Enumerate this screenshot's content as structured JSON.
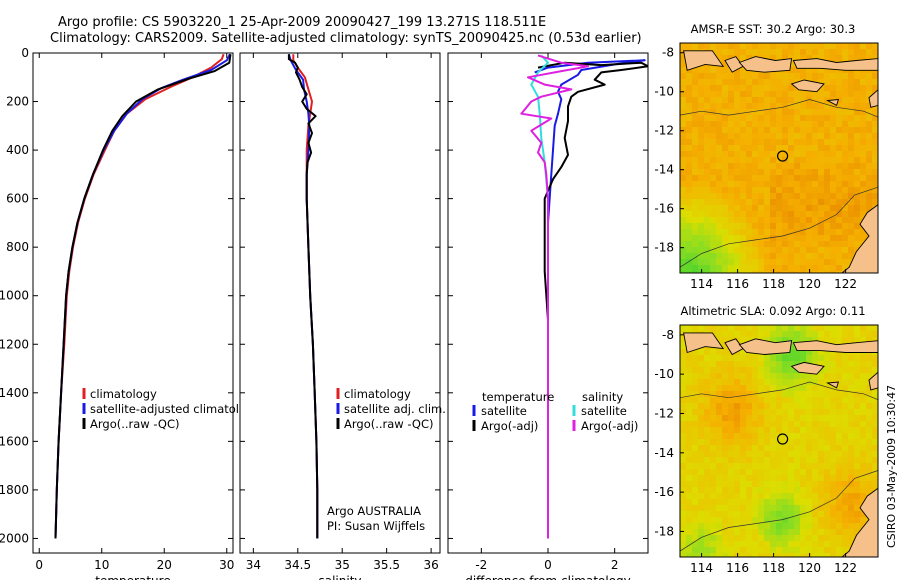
{
  "header": {
    "line1": "Argo profile: CS 5903220_1 25-Apr-2009 20090427_199 13.271S 118.511E",
    "line2": "Climatology: CARS2009. Satellite-adjusted climatology: synTS_20090425.nc (0.53d earlier)"
  },
  "footer": {
    "stamp": "CSIRO 03-May-2009 10:30:47"
  },
  "colors": {
    "clim": "#e02020",
    "sat": "#1a1ae6",
    "argo": "#000000",
    "sat_sal": "#33dddd",
    "argo_sal": "#e020e0",
    "land": "#f5c08a",
    "ocean_base": "#f0a800",
    "cool": "#2ed02e"
  },
  "chart_data": [
    {
      "id": "temp",
      "type": "line",
      "xlabel": "temperature",
      "xlim": [
        -1,
        31
      ],
      "ylim": [
        0,
        2060
      ],
      "xticks": [
        0,
        10,
        20,
        30
      ],
      "yticks": [
        0,
        200,
        400,
        600,
        800,
        1000,
        1200,
        1400,
        1600,
        1800,
        2000
      ],
      "legend": [
        "climatology",
        "satellite-adjusted climatology",
        "Argo(..raw -QC)"
      ],
      "series": [
        {
          "name": "climatology",
          "color": "clim",
          "points": [
            [
              29.5,
              5
            ],
            [
              29.2,
              25
            ],
            [
              27.5,
              60
            ],
            [
              24.5,
              100
            ],
            [
              21,
              140
            ],
            [
              17,
              190
            ],
            [
              14,
              250
            ],
            [
              12,
              320
            ],
            [
              10.5,
              400
            ],
            [
              8.7,
              500
            ],
            [
              7.3,
              600
            ],
            [
              6.2,
              700
            ],
            [
              5.4,
              800
            ],
            [
              4.8,
              900
            ],
            [
              4.4,
              1000
            ],
            [
              4,
              1200
            ],
            [
              3.5,
              1400
            ],
            [
              3.1,
              1600
            ],
            [
              2.8,
              1800
            ],
            [
              2.6,
              2000
            ]
          ]
        },
        {
          "name": "satellite",
          "color": "sat",
          "points": [
            [
              30.5,
              5
            ],
            [
              30,
              30
            ],
            [
              27.5,
              70
            ],
            [
              23,
              110
            ],
            [
              19.5,
              145
            ],
            [
              16.5,
              190
            ],
            [
              14,
              250
            ],
            [
              12,
              320
            ],
            [
              10.3,
              400
            ],
            [
              8.6,
              500
            ],
            [
              7.2,
              600
            ],
            [
              6.1,
              700
            ],
            [
              5.3,
              800
            ],
            [
              4.7,
              900
            ],
            [
              4.3,
              1000
            ],
            [
              3.9,
              1200
            ],
            [
              3.5,
              1400
            ],
            [
              3.1,
              1600
            ],
            [
              2.8,
              1800
            ],
            [
              2.6,
              2000
            ]
          ]
        },
        {
          "name": "argo",
          "color": "argo",
          "points": [
            [
              30.6,
              5
            ],
            [
              30.4,
              40
            ],
            [
              28,
              75
            ],
            [
              24,
              105
            ],
            [
              19,
              150
            ],
            [
              15.5,
              200
            ],
            [
              13.3,
              260
            ],
            [
              11.7,
              320
            ],
            [
              10.2,
              400
            ],
            [
              8.6,
              500
            ],
            [
              7.2,
              600
            ],
            [
              6.1,
              700
            ],
            [
              5.3,
              800
            ],
            [
              4.7,
              900
            ],
            [
              4.3,
              1000
            ],
            [
              3.9,
              1200
            ],
            [
              3.5,
              1400
            ],
            [
              3.1,
              1600
            ],
            [
              2.8,
              1800
            ],
            [
              2.6,
              2000
            ]
          ]
        }
      ]
    },
    {
      "id": "sal",
      "type": "line",
      "xlabel": "salinity",
      "xlim": [
        33.85,
        36.1
      ],
      "ylim": [
        0,
        2060
      ],
      "xticks": [
        34,
        34.5,
        35,
        35.5,
        36
      ],
      "xticklabels": [
        "34",
        "34.5",
        "35",
        "35.5",
        "36"
      ],
      "legend": [
        "climatology",
        "satellite adj. clim.",
        "Argo(..raw -QC)"
      ],
      "note1": "Argo AUSTRALIA",
      "note2": "PI: Susan Wijffels",
      "series": [
        {
          "name": "climatology",
          "color": "clim",
          "points": [
            [
              34.45,
              5
            ],
            [
              34.45,
              30
            ],
            [
              34.5,
              60
            ],
            [
              34.58,
              100
            ],
            [
              34.62,
              150
            ],
            [
              34.66,
              200
            ],
            [
              34.64,
              250
            ],
            [
              34.62,
              300
            ],
            [
              34.6,
              400
            ],
            [
              34.6,
              500
            ],
            [
              34.6,
              600
            ],
            [
              34.62,
              800
            ],
            [
              34.64,
              1000
            ],
            [
              34.67,
              1200
            ],
            [
              34.69,
              1400
            ],
            [
              34.71,
              1600
            ],
            [
              34.72,
              1800
            ],
            [
              34.72,
              2000
            ]
          ]
        },
        {
          "name": "satellite",
          "color": "sat",
          "points": [
            [
              34.4,
              5
            ],
            [
              34.42,
              30
            ],
            [
              34.48,
              70
            ],
            [
              34.56,
              110
            ],
            [
              34.57,
              150
            ],
            [
              34.6,
              200
            ],
            [
              34.62,
              250
            ],
            [
              34.63,
              300
            ],
            [
              34.62,
              400
            ],
            [
              34.6,
              500
            ],
            [
              34.6,
              600
            ],
            [
              34.62,
              800
            ],
            [
              34.64,
              1000
            ],
            [
              34.67,
              1200
            ],
            [
              34.69,
              1400
            ],
            [
              34.71,
              1600
            ],
            [
              34.72,
              1800
            ],
            [
              34.72,
              2000
            ]
          ]
        },
        {
          "name": "argo",
          "color": "argo",
          "points": [
            [
              34.4,
              5
            ],
            [
              34.4,
              25
            ],
            [
              34.47,
              40
            ],
            [
              34.5,
              60
            ],
            [
              34.48,
              80
            ],
            [
              34.52,
              110
            ],
            [
              34.55,
              140
            ],
            [
              34.6,
              170
            ],
            [
              34.55,
              200
            ],
            [
              34.6,
              230
            ],
            [
              34.7,
              260
            ],
            [
              34.62,
              290
            ],
            [
              34.66,
              330
            ],
            [
              34.62,
              370
            ],
            [
              34.65,
              410
            ],
            [
              34.61,
              450
            ],
            [
              34.6,
              500
            ],
            [
              34.6,
              600
            ],
            [
              34.62,
              800
            ],
            [
              34.64,
              1000
            ],
            [
              34.67,
              1200
            ],
            [
              34.69,
              1400
            ],
            [
              34.71,
              1600
            ],
            [
              34.72,
              1800
            ],
            [
              34.72,
              2000
            ]
          ]
        }
      ]
    },
    {
      "id": "diff",
      "type": "line",
      "xlabel": "difference from climatology",
      "xlim": [
        -3,
        3
      ],
      "ylim": [
        0,
        2060
      ],
      "xticks": [
        -2,
        0,
        2
      ],
      "legend_temp": {
        "title": "temperature",
        "items": [
          "satellite",
          "Argo(-adj)"
        ]
      },
      "legend_sal": {
        "title": "salinity",
        "items": [
          "satellite",
          "Argo(-adj)"
        ]
      },
      "series": [
        {
          "name": "T satellite",
          "color": "sat",
          "points": [
            [
              -0.4,
              80
            ],
            [
              0,
              60
            ],
            [
              1.2,
              40
            ],
            [
              2.9,
              30
            ],
            [
              2.1,
              45
            ],
            [
              1,
              70
            ],
            [
              0.9,
              90
            ],
            [
              0.4,
              130
            ],
            [
              0.3,
              160
            ],
            [
              0.4,
              190
            ],
            [
              0.3,
              250
            ],
            [
              0.2,
              300
            ],
            [
              0.15,
              400
            ],
            [
              0.1,
              500
            ],
            [
              0,
              700
            ],
            [
              0,
              900
            ],
            [
              0,
              1200
            ],
            [
              0,
              1600
            ],
            [
              0,
              2000
            ]
          ]
        },
        {
          "name": "T argo",
          "color": "argo",
          "points": [
            [
              -0.3,
              60
            ],
            [
              0.5,
              40
            ],
            [
              1.6,
              50
            ],
            [
              2.8,
              40
            ],
            [
              3,
              55
            ],
            [
              2.2,
              70
            ],
            [
              1.6,
              80
            ],
            [
              1.4,
              110
            ],
            [
              1.7,
              130
            ],
            [
              0.9,
              160
            ],
            [
              0.7,
              180
            ],
            [
              0.6,
              220
            ],
            [
              0.6,
              280
            ],
            [
              0.5,
              350
            ],
            [
              0.6,
              420
            ],
            [
              0.4,
              470
            ],
            [
              0.15,
              520
            ],
            [
              -0.1,
              600
            ],
            [
              -0.1,
              800
            ],
            [
              -0.1,
              900
            ],
            [
              0,
              1100
            ],
            [
              0,
              1400
            ],
            [
              0,
              1700
            ],
            [
              0,
              2000
            ]
          ]
        },
        {
          "name": "S satellite",
          "color": "sat_sal",
          "points": [
            [
              -0.2,
              10
            ],
            [
              0,
              40
            ],
            [
              -0.3,
              80
            ],
            [
              -0.5,
              130
            ],
            [
              -0.3,
              180
            ],
            [
              -0.25,
              250
            ],
            [
              -0.2,
              350
            ],
            [
              -0.1,
              450
            ],
            [
              0,
              600
            ],
            [
              0,
              800
            ],
            [
              0,
              1200
            ],
            [
              0,
              1600
            ],
            [
              0,
              2000
            ]
          ]
        },
        {
          "name": "S argo",
          "color": "argo_sal",
          "points": [
            [
              -0.3,
              10
            ],
            [
              0.4,
              40
            ],
            [
              1.2,
              55
            ],
            [
              0.2,
              80
            ],
            [
              -0.6,
              100
            ],
            [
              -0.1,
              130
            ],
            [
              0.7,
              150
            ],
            [
              -0.2,
              180
            ],
            [
              -0.5,
              200
            ],
            [
              -0.8,
              250
            ],
            [
              0.1,
              270
            ],
            [
              -0.5,
              320
            ],
            [
              -0.2,
              370
            ],
            [
              -0.3,
              410
            ],
            [
              -0.1,
              450
            ],
            [
              -0.05,
              500
            ],
            [
              0,
              600
            ],
            [
              0,
              800
            ],
            [
              0,
              1200
            ],
            [
              0,
              1600
            ],
            [
              0,
              2000
            ]
          ]
        }
      ]
    },
    {
      "id": "sst",
      "type": "heatmap",
      "title": "AMSR-E SST: 30.2 Argo: 30.3",
      "xlim": [
        112.8,
        123.8
      ],
      "ylim": [
        -19.3,
        -7.5
      ],
      "xticks": [
        114,
        116,
        118,
        120,
        122
      ],
      "yticks": [
        -8,
        -10,
        -12,
        -14,
        -16,
        -18
      ],
      "argo_position": [
        118.5,
        -13.3
      ]
    },
    {
      "id": "sla",
      "type": "heatmap",
      "title": "Altimetric SLA: 0.092 Argo: 0.11",
      "xlim": [
        112.8,
        123.8
      ],
      "ylim": [
        -19.3,
        -7.5
      ],
      "xticks": [
        114,
        116,
        118,
        120,
        122
      ],
      "yticks": [
        -8,
        -10,
        -12,
        -14,
        -16,
        -18
      ],
      "argo_position": [
        118.5,
        -13.3
      ]
    }
  ]
}
